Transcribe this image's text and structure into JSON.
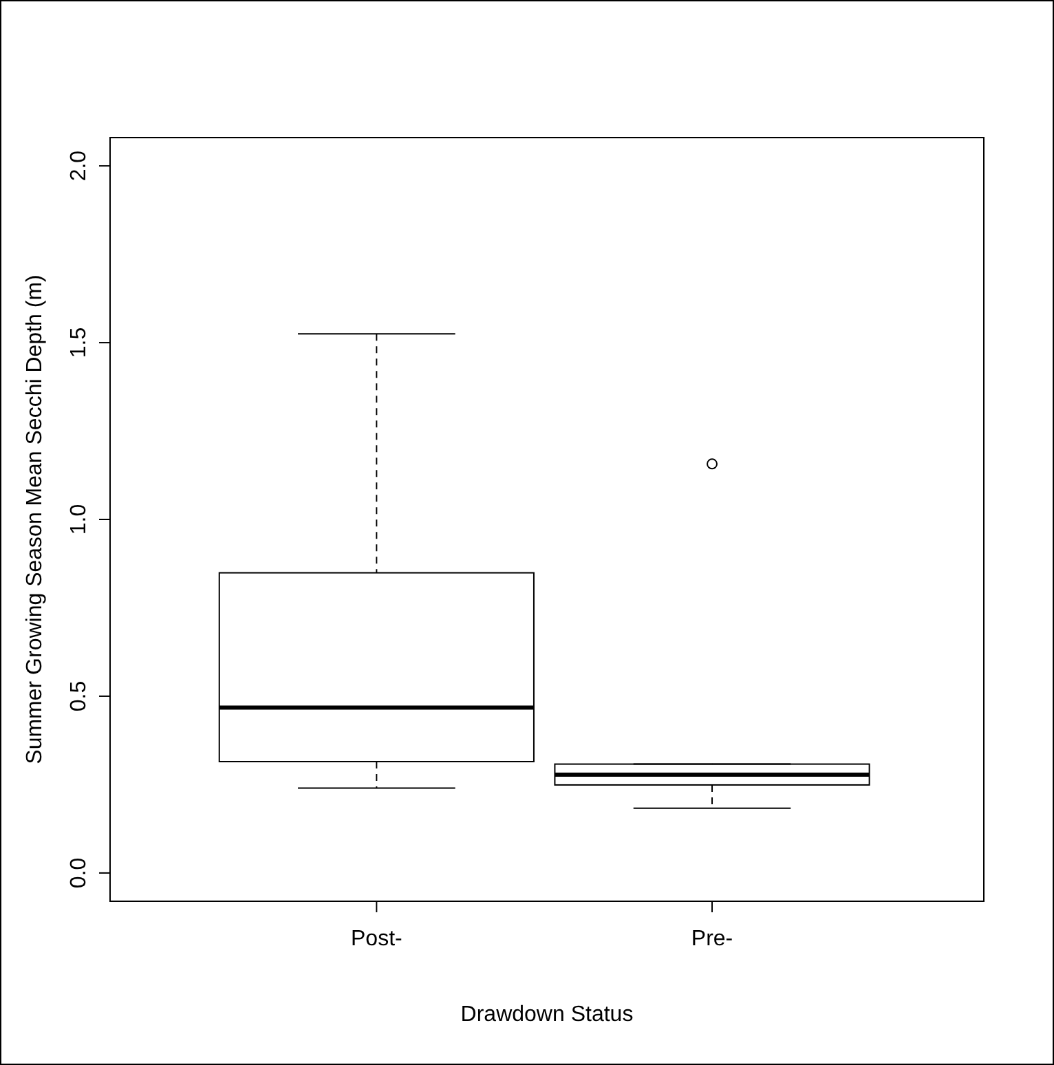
{
  "chart_data": {
    "type": "box",
    "xlabel": "Drawdown Status",
    "ylabel": "Summer Growing Season Mean Secchi Depth (m)",
    "categories": [
      "Post-",
      "Pre-"
    ],
    "boxes": [
      {
        "low": 0.24,
        "q1": 0.315,
        "median": 0.468,
        "q3": 0.849,
        "high": 1.525
      },
      {
        "low": 0.183,
        "q1": 0.249,
        "median": 0.278,
        "q3": 0.308,
        "high": 0.308,
        "outliers": [
          1.157
        ]
      }
    ],
    "color": "#000000",
    "ylim": [
      -0.08,
      2.08
    ],
    "yticks": [
      {
        "value": 0,
        "label": "0.0"
      },
      0.5,
      {
        "value": 1,
        "label": "1.0"
      },
      1.5,
      {
        "value": 2,
        "label": "2.0"
      }
    ],
    "grid": false
  }
}
